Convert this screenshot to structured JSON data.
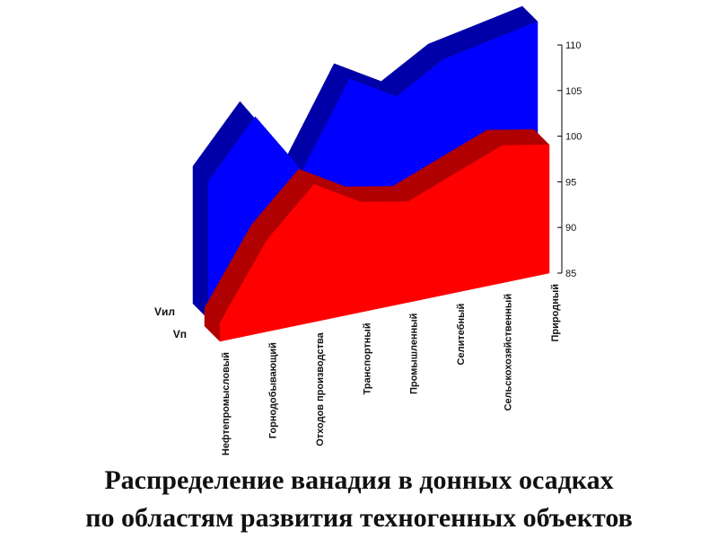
{
  "chart_data": {
    "type": "area",
    "categories": [
      "Нефтепромысловый",
      "Горнодобывающий",
      "Отходов производства",
      "Транспортный",
      "Промышленный",
      "Селитебный",
      "Сельскохозяйственный",
      "Природный"
    ],
    "series": [
      {
        "name": "Vил",
        "values": [
          100,
          106,
          99,
          108,
          105,
          108,
          109,
          110
        ],
        "color": "#0000ff",
        "dark_color": "#0000a8"
      },
      {
        "name": "Vп",
        "values": [
          87,
          95,
          100,
          97,
          96,
          98,
          100,
          99
        ],
        "color": "#ff0000",
        "dark_color": "#b00000"
      }
    ],
    "ylim": [
      85,
      110
    ],
    "yticks": [
      "85",
      "90",
      "95",
      "100",
      "105",
      "110"
    ],
    "grid": false,
    "legend": "none",
    "projection": "3d-depth"
  },
  "caption": {
    "line1": "Распределение ванадия в донных осадках",
    "line2": "по областям развития техногенных объектов"
  }
}
